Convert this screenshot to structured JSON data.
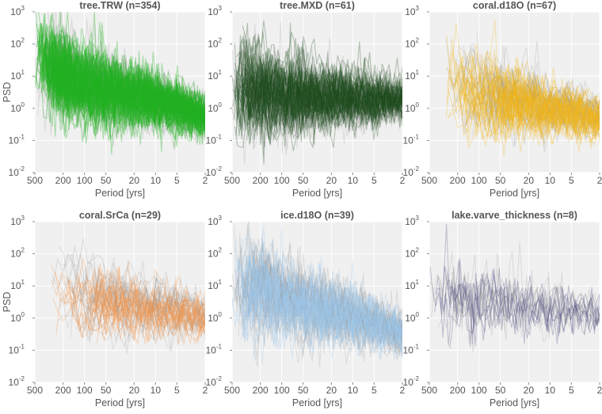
{
  "chart_data": [
    {
      "type": "line",
      "title": "tree.TRW (n=354)",
      "color": "#22b322",
      "n": 354,
      "xlabel": "Period [yrs]",
      "ylabel": "PSD",
      "xscale": "log",
      "yscale": "log",
      "xlim": [
        500,
        2
      ],
      "ylim": [
        0.01,
        1000
      ],
      "xticks": [
        500,
        200,
        100,
        50,
        20,
        10,
        5,
        2
      ],
      "yticks": [
        0.01,
        0.1,
        1,
        10,
        100,
        1000
      ],
      "grid": true,
      "approx_median": {
        "x": [
          500,
          200,
          100,
          50,
          20,
          10,
          5,
          2
        ],
        "y": [
          30,
          8,
          4,
          3,
          2,
          1.5,
          1,
          0.5
        ]
      }
    },
    {
      "type": "line",
      "title": "tree.MXD (n=61)",
      "color": "#1f4d1f",
      "n": 61,
      "xlabel": "Period [yrs]",
      "ylabel": "",
      "xscale": "log",
      "yscale": "log",
      "xlim": [
        500,
        2
      ],
      "ylim": [
        0.01,
        1000
      ],
      "xticks": [
        500,
        200,
        100,
        50,
        20,
        10,
        5,
        2
      ],
      "yticks": [
        0.01,
        0.1,
        1,
        10,
        100,
        1000
      ],
      "grid": true,
      "approx_median": {
        "x": [
          500,
          200,
          100,
          50,
          20,
          10,
          5,
          2
        ],
        "y": [
          3,
          3,
          2,
          2,
          2,
          1.8,
          1.8,
          1.8
        ]
      }
    },
    {
      "type": "line",
      "title": "coral.d18O (n=67)",
      "color": "#f2b51c",
      "n": 67,
      "xlabel": "Period [yrs]",
      "ylabel": "",
      "xscale": "log",
      "yscale": "log",
      "xlim": [
        500,
        2
      ],
      "ylim": [
        0.01,
        1000
      ],
      "xticks": [
        500,
        200,
        100,
        50,
        20,
        10,
        5,
        2
      ],
      "yticks": [
        0.01,
        0.1,
        1,
        10,
        100,
        1000
      ],
      "grid": true,
      "approx_median": {
        "x": [
          300,
          200,
          100,
          50,
          20,
          10,
          5,
          2
        ],
        "y": [
          6,
          5,
          3,
          2,
          1.5,
          1,
          0.8,
          0.5
        ]
      }
    },
    {
      "type": "line",
      "title": "coral.SrCa (n=29)",
      "color": "#f5964a",
      "n": 29,
      "xlabel": "Period [yrs]",
      "ylabel": "PSD",
      "xscale": "log",
      "yscale": "log",
      "xlim": [
        500,
        2
      ],
      "ylim": [
        0.01,
        1000
      ],
      "xticks": [
        500,
        200,
        100,
        50,
        20,
        10,
        5,
        2
      ],
      "yticks": [
        0.01,
        0.1,
        1,
        10,
        100,
        1000
      ],
      "grid": true,
      "approx_median": {
        "x": [
          300,
          200,
          100,
          50,
          20,
          10,
          5,
          2
        ],
        "y": [
          5,
          5,
          3,
          3,
          2,
          1.5,
          1.5,
          1
        ]
      }
    },
    {
      "type": "line",
      "title": "ice.d18O (n=39)",
      "color": "#9cc8ea",
      "n": 39,
      "xlabel": "Period [yrs]",
      "ylabel": "",
      "xscale": "log",
      "yscale": "log",
      "xlim": [
        500,
        2
      ],
      "ylim": [
        0.01,
        1000
      ],
      "xticks": [
        500,
        200,
        100,
        50,
        20,
        10,
        5,
        2
      ],
      "yticks": [
        0.01,
        0.1,
        1,
        10,
        100,
        1000
      ],
      "grid": true,
      "approx_median": {
        "x": [
          500,
          200,
          100,
          50,
          20,
          10,
          5,
          2
        ],
        "y": [
          10,
          6,
          4,
          2,
          1.5,
          1,
          0.7,
          0.3
        ]
      }
    },
    {
      "type": "line",
      "title": "lake.varve_thickness (n=8)",
      "color": "#4f4f82",
      "n": 8,
      "xlabel": "Period [yrs]",
      "ylabel": "",
      "xscale": "log",
      "yscale": "log",
      "xlim": [
        500,
        2
      ],
      "ylim": [
        0.01,
        1000
      ],
      "xticks": [
        500,
        200,
        100,
        50,
        20,
        10,
        5,
        2
      ],
      "yticks": [
        0.01,
        0.1,
        1,
        10,
        100,
        1000
      ],
      "grid": true,
      "approx_median": {
        "x": [
          500,
          200,
          100,
          50,
          20,
          10,
          5,
          2
        ],
        "y": [
          5,
          3,
          2,
          3,
          2,
          1.8,
          1.5,
          1.2
        ]
      }
    }
  ],
  "background_series_color": "#808080",
  "plot_background": "#f0f0f0"
}
